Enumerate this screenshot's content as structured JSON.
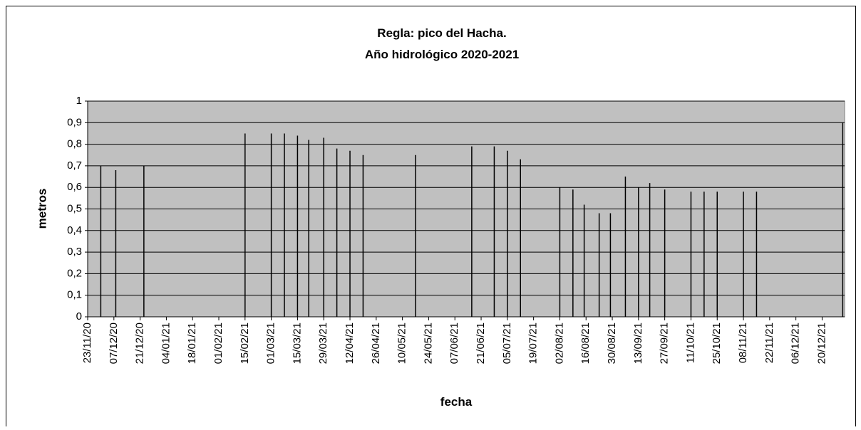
{
  "chart_data": {
    "type": "bar",
    "title": "Regla: pico del Hacha.",
    "subtitle": "Año hidrológico 2020-2021",
    "x_label": "fecha",
    "y_label": "metros",
    "x": [
      "30/11/20",
      "08/12/20",
      "23/12/20",
      "15/02/21",
      "01/03/21",
      "08/03/21",
      "15/03/21",
      "21/03/21",
      "29/03/21",
      "05/04/21",
      "12/04/21",
      "19/04/21",
      "17/05/21",
      "16/06/21",
      "28/06/21",
      "05/07/21",
      "12/07/21",
      "02/08/21",
      "09/08/21",
      "15/08/21",
      "23/08/21",
      "29/08/21",
      "06/09/21",
      "13/09/21",
      "19/09/21",
      "27/09/21",
      "11/10/21",
      "18/10/21",
      "25/10/21",
      "08/11/21",
      "15/11/21",
      "31/12/21"
    ],
    "values": [
      0.7,
      0.68,
      0.7,
      0.85,
      0.85,
      0.85,
      0.84,
      0.82,
      0.83,
      0.78,
      0.77,
      0.75,
      0.75,
      0.79,
      0.79,
      0.77,
      0.73,
      0.6,
      0.59,
      0.52,
      0.48,
      0.48,
      0.65,
      0.6,
      0.62,
      0.59,
      0.58,
      0.58,
      0.58,
      0.58,
      0.58,
      0.9
    ],
    "color": "#000000",
    "xlim": [
      "23/11/20",
      "01/01/22"
    ],
    "xticks": [
      "23/11/20",
      "07/12/20",
      "21/12/20",
      "04/01/21",
      "18/01/21",
      "01/02/21",
      "15/02/21",
      "01/03/21",
      "15/03/21",
      "29/03/21",
      "12/04/21",
      "26/04/21",
      "10/05/21",
      "24/05/21",
      "07/06/21",
      "21/06/21",
      "05/07/21",
      "19/07/21",
      "02/08/21",
      "16/08/21",
      "30/08/21",
      "13/09/21",
      "27/09/21",
      "11/10/21",
      "25/10/21",
      "08/11/21",
      "22/11/21",
      "06/12/21",
      "20/12/21"
    ],
    "ylim": [
      0,
      1
    ],
    "yticks": [
      0,
      {
        "value": 0.1,
        "label": "0,1"
      },
      {
        "value": 0.2,
        "label": "0,2"
      },
      {
        "value": 0.3,
        "label": "0,3"
      },
      {
        "value": 0.4,
        "label": "0,4"
      },
      {
        "value": 0.5,
        "label": "0,5"
      },
      {
        "value": 0.6,
        "label": "0,6"
      },
      {
        "value": 0.7,
        "label": "0,7"
      },
      {
        "value": 0.8,
        "label": "0,8"
      },
      {
        "value": 0.9,
        "label": "0,9"
      },
      1
    ],
    "grid": true,
    "plot_background": "#c0c0c0"
  }
}
